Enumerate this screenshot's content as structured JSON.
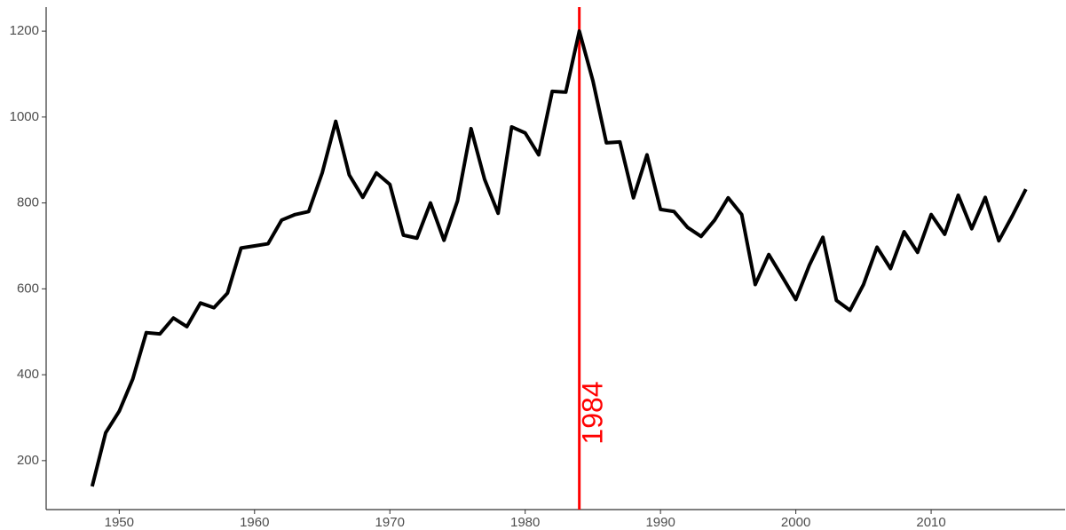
{
  "chart_data": {
    "type": "line",
    "x": [
      1948,
      1949,
      1950,
      1951,
      1952,
      1953,
      1954,
      1955,
      1956,
      1957,
      1958,
      1959,
      1960,
      1961,
      1962,
      1963,
      1964,
      1965,
      1966,
      1967,
      1968,
      1969,
      1970,
      1971,
      1972,
      1973,
      1974,
      1975,
      1976,
      1977,
      1978,
      1979,
      1980,
      1981,
      1982,
      1983,
      1984,
      1985,
      1986,
      1987,
      1988,
      1989,
      1990,
      1991,
      1992,
      1993,
      1994,
      1995,
      1996,
      1997,
      1998,
      1999,
      2000,
      2001,
      2002,
      2003,
      2004,
      2005,
      2006,
      2007,
      2008,
      2009,
      2010,
      2011,
      2012,
      2013,
      2014,
      2015,
      2016,
      2017
    ],
    "series": [
      {
        "color": "#000000",
        "values": [
          140,
          265,
          315,
          390,
          498,
          495,
          532,
          512,
          567,
          556,
          590,
          695,
          700,
          705,
          760,
          773,
          780,
          870,
          990,
          865,
          813,
          870,
          843,
          725,
          718,
          800,
          713,
          805,
          973,
          855,
          776,
          977,
          963,
          912,
          1060,
          1058,
          1200,
          1085,
          940,
          942,
          812,
          912,
          785,
          780,
          743,
          722,
          760,
          812,
          773,
          610,
          680,
          628,
          575,
          655,
          720,
          573,
          550,
          610,
          697,
          647,
          733,
          685,
          773,
          727,
          818,
          740,
          813,
          712,
          770,
          832
        ]
      }
    ],
    "xlim": [
      1944.6,
      2019.9
    ],
    "ylim": [
      86,
      1256
    ],
    "xticks": [
      1950,
      1960,
      1970,
      1980,
      1990,
      2000,
      2010
    ],
    "yticks": [
      200,
      400,
      600,
      800,
      1000,
      1200
    ],
    "grid": false,
    "annotations": [
      {
        "x": 1984,
        "label": "1984",
        "color": "#ff0000"
      }
    ]
  }
}
